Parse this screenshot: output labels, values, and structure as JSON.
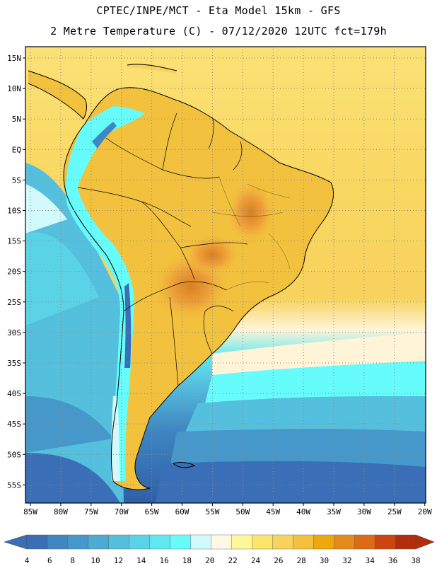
{
  "title": {
    "line1": "CPTEC/INPE/MCT -  Eta Model 15km - GFS",
    "line2": "2 Metre Temperature (C) - 07/12/2020 12UTC fct=179h"
  },
  "axes": {
    "lon_labels": [
      "85W",
      "80W",
      "75W",
      "70W",
      "65W",
      "60W",
      "55W",
      "50W",
      "45W",
      "40W",
      "35W",
      "30W",
      "25W",
      "20W"
    ],
    "lat_labels": [
      "15N",
      "10N",
      "5N",
      "EQ",
      "5S",
      "10S",
      "15S",
      "20S",
      "25S",
      "30S",
      "35S",
      "40S",
      "45S",
      "50S",
      "55S"
    ]
  },
  "colorbar": {
    "labels": [
      "4",
      "6",
      "8",
      "10",
      "12",
      "14",
      "16",
      "18",
      "20",
      "22",
      "24",
      "26",
      "28",
      "30",
      "32",
      "34",
      "36",
      "38"
    ],
    "colors": [
      "#3a6eb6",
      "#3f86c2",
      "#4598c9",
      "#4cabd4",
      "#55c0dd",
      "#5ad3e6",
      "#5fe8f0",
      "#66fcfc",
      "#d2f9fc",
      "#fff8e2",
      "#fff79a",
      "#fbe56b",
      "#f7d25c",
      "#f2c13d",
      "#eea70e",
      "#e68a1c",
      "#de6b14",
      "#cc4410",
      "#b22d0c"
    ]
  },
  "colors": {
    "ocean_warm": "#fde37a",
    "ocean_mid": "#f9d15f",
    "land_hot": "#f0b13b",
    "cold_1": "#66fcfc",
    "cold_2": "#55c0dd",
    "cold_3": "#3f86c2",
    "cold_4": "#2f5fa5"
  }
}
